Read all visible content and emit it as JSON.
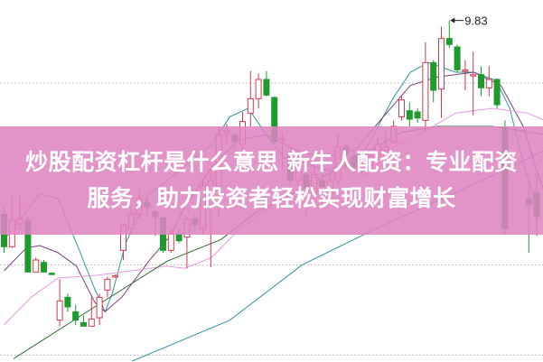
{
  "headline": {
    "line1": "炒股配资杠杆是什么意思 新牛人配资：专业配资",
    "line2": "服务，助力投资者轻松实现财富增长"
  },
  "colors": {
    "up": "#d23a4c",
    "down": "#1e9b2e",
    "grid": "#b0b0b0",
    "banner": "#de84c0",
    "label": "#222222"
  },
  "chart_data": {
    "type": "candlestick",
    "title": "",
    "xlabel": "",
    "ylabel": "",
    "ylim": [
      7.0,
      10.0
    ],
    "grid": true,
    "gridlines": [
      9.31,
      8.55,
      7.8,
      7.05
    ],
    "annotations": [
      {
        "text": "9.83",
        "index": 56,
        "price": 9.83
      }
    ],
    "candles": [
      [
        0,
        8.22,
        7.95,
        8.28,
        7.9
      ],
      [
        1,
        7.95,
        8.17,
        8.39,
        7.94
      ],
      [
        2,
        8.14,
        8.18,
        8.37,
        8.09
      ],
      [
        3,
        8.17,
        7.74,
        8.2,
        7.74
      ],
      [
        4,
        7.74,
        7.84,
        7.86,
        7.74
      ],
      [
        5,
        7.82,
        7.74,
        7.84,
        7.74
      ],
      [
        6,
        7.73,
        7.72,
        7.74,
        7.72
      ],
      [
        7,
        7.34,
        7.5,
        7.68,
        7.29
      ],
      [
        8,
        7.53,
        7.45,
        7.56,
        7.41
      ],
      [
        9,
        7.41,
        7.34,
        7.47,
        7.3
      ],
      [
        10,
        7.32,
        7.29,
        7.38,
        7.29
      ],
      [
        11,
        7.29,
        7.35,
        7.53,
        7.29
      ],
      [
        12,
        7.36,
        7.53,
        7.56,
        7.3
      ],
      [
        13,
        7.59,
        7.68,
        7.7,
        7.53
      ],
      [
        14,
        7.7,
        7.71,
        7.72,
        7.69
      ],
      [
        15,
        7.92,
        8.13,
        8.14,
        7.84
      ],
      [
        16,
        8.1,
        8.22,
        8.3,
        8.05
      ],
      [
        17,
        8.22,
        8.35,
        8.42,
        8.18
      ],
      [
        18,
        8.32,
        8.28,
        8.36,
        8.2
      ],
      [
        19,
        8.24,
        8.2,
        8.25,
        8.04
      ],
      [
        20,
        8.19,
        7.92,
        8.2,
        7.9
      ],
      [
        21,
        7.92,
        8.06,
        8.1,
        7.9
      ],
      [
        22,
        8.06,
        8.0,
        8.1,
        7.98
      ],
      [
        23,
        8.03,
        8.18,
        8.2,
        7.77
      ],
      [
        24,
        8.18,
        8.13,
        8.22,
        8.1
      ],
      [
        25,
        8.1,
        8.46,
        8.5,
        8.05
      ],
      [
        26,
        8.3,
        8.5,
        8.6,
        7.78
      ],
      [
        27,
        8.45,
        8.88,
        8.95,
        8.2
      ],
      [
        28,
        8.89,
        8.91,
        8.97,
        8.8
      ],
      [
        29,
        8.88,
        8.82,
        8.9,
        8.75
      ],
      [
        30,
        8.8,
        8.99,
        9.07,
        8.7
      ],
      [
        31,
        9.06,
        9.18,
        9.41,
        8.95
      ],
      [
        32,
        9.18,
        9.34,
        9.39,
        9.1
      ],
      [
        33,
        9.34,
        9.21,
        9.41,
        9.2
      ],
      [
        34,
        9.19,
        8.82,
        9.2,
        8.8
      ],
      [
        35,
        8.84,
        8.85,
        8.9,
        8.6
      ],
      [
        36,
        8.7,
        8.5,
        8.75,
        8.3
      ],
      [
        37,
        8.5,
        8.62,
        8.7,
        8.4
      ],
      [
        38,
        8.55,
        8.45,
        8.6,
        8.2
      ],
      [
        39,
        8.4,
        8.55,
        8.65,
        8.35
      ],
      [
        40,
        8.5,
        8.45,
        8.6,
        8.3
      ],
      [
        41,
        8.4,
        8.5,
        8.55,
        8.3
      ],
      [
        42,
        8.5,
        8.78,
        8.89,
        8.45
      ],
      [
        43,
        8.78,
        8.72,
        8.8,
        8.6
      ],
      [
        44,
        8.7,
        8.6,
        8.75,
        8.55
      ],
      [
        45,
        8.6,
        8.65,
        8.7,
        8.55
      ],
      [
        46,
        8.62,
        8.7,
        8.75,
        8.6
      ],
      [
        47,
        8.68,
        8.8,
        8.85,
        8.6
      ],
      [
        48,
        8.75,
        8.78,
        8.9,
        8.7
      ],
      [
        49,
        8.82,
        8.95,
        9.0,
        8.8
      ],
      [
        50,
        9.03,
        9.17,
        9.2,
        9.0
      ],
      [
        51,
        9.08,
        9.01,
        9.15,
        8.95
      ],
      [
        52,
        9.07,
        9.02,
        9.1,
        8.98
      ],
      [
        53,
        9.0,
        9.48,
        9.65,
        8.9
      ],
      [
        54,
        9.48,
        9.25,
        9.5,
        9.15
      ],
      [
        55,
        9.26,
        9.68,
        9.78,
        9.02
      ],
      [
        56,
        9.68,
        9.63,
        9.83,
        9.6
      ],
      [
        57,
        9.61,
        9.42,
        9.63,
        9.4
      ],
      [
        58,
        9.41,
        9.42,
        9.5,
        9.25
      ],
      [
        59,
        9.37,
        9.38,
        9.57,
        9.04
      ],
      [
        60,
        9.38,
        9.27,
        9.45,
        9.2
      ],
      [
        61,
        9.27,
        9.34,
        9.45,
        9.2
      ],
      [
        62,
        9.34,
        9.13,
        9.35,
        9.1
      ],
      [
        63,
        8.94,
        8.1,
        9.0,
        8.05
      ],
      [
        66,
        8.35,
        8.3,
        8.5,
        7.9
      ],
      [
        67,
        8.4,
        8.2,
        8.55,
        8.04
      ]
    ],
    "ma_lines": [
      {
        "color": "#2a9a9a",
        "points": [
          [
            0,
            8.01
          ],
          [
            2.3,
            8.2
          ],
          [
            4.5,
            8.39
          ],
          [
            6.8,
            8.35
          ],
          [
            9.1,
            7.98
          ],
          [
            11.4,
            7.6
          ],
          [
            12.7,
            7.41
          ],
          [
            13.6,
            7.56
          ],
          [
            15.3,
            7.98
          ],
          [
            18.2,
            8.39
          ],
          [
            20.5,
            8.5
          ],
          [
            26.1,
            8.8
          ],
          [
            28.4,
            9.03
          ],
          [
            30.7,
            9.1
          ],
          [
            33,
            8.88
          ],
          [
            35.2,
            8.69
          ],
          [
            37.5,
            8.65
          ],
          [
            40.9,
            8.58
          ],
          [
            45.5,
            8.76
          ],
          [
            48.9,
            9.18
          ],
          [
            51.1,
            9.4
          ],
          [
            53.4,
            9.48
          ],
          [
            56.8,
            9.4
          ],
          [
            59.1,
            9.4
          ],
          [
            61.9,
            9.33
          ],
          [
            63.6,
            9.1
          ],
          [
            65.3,
            8.65
          ],
          [
            67,
            8.28
          ]
        ]
      },
      {
        "color": "#7a3f7a",
        "points": [
          [
            0,
            7.75
          ],
          [
            2.8,
            7.94
          ],
          [
            4.5,
            7.96
          ],
          [
            6.8,
            7.9
          ],
          [
            9.1,
            7.79
          ],
          [
            11.4,
            7.49
          ],
          [
            12.7,
            7.41
          ],
          [
            14.8,
            7.53
          ],
          [
            18.2,
            7.83
          ],
          [
            21,
            8.05
          ],
          [
            22.7,
            8.28
          ],
          [
            26.1,
            8.61
          ],
          [
            29.5,
            8.84
          ],
          [
            33,
            8.88
          ],
          [
            36.4,
            8.76
          ],
          [
            39.8,
            8.69
          ],
          [
            44.3,
            8.76
          ],
          [
            47.7,
            9.03
          ],
          [
            51.1,
            9.29
          ],
          [
            54.5,
            9.36
          ],
          [
            59.1,
            9.4
          ],
          [
            62.5,
            9.29
          ],
          [
            65.3,
            8.95
          ],
          [
            67,
            8.58
          ],
          [
            68.3,
            8.35
          ]
        ]
      },
      {
        "color": "#e49ae0",
        "points": [
          [
            0,
            7.3
          ],
          [
            3.4,
            7.53
          ],
          [
            6.8,
            7.69
          ],
          [
            11.4,
            7.71
          ],
          [
            20.5,
            7.79
          ],
          [
            22.7,
            7.77
          ],
          [
            26.1,
            7.86
          ],
          [
            29.5,
            8.09
          ],
          [
            34.1,
            8.31
          ],
          [
            38.6,
            8.5
          ],
          [
            45.5,
            8.69
          ],
          [
            51.1,
            8.84
          ],
          [
            56.8,
            9.06
          ],
          [
            61.4,
            9.1
          ],
          [
            65.9,
            9.06
          ],
          [
            68.3,
            8.99
          ]
        ]
      },
      {
        "color": "#2f6b2f",
        "points": [
          [
            1.2,
            7.02
          ],
          [
            11.4,
            7.45
          ],
          [
            20.5,
            7.83
          ],
          [
            27.3,
            8.01
          ],
          [
            31.8,
            8.24
          ],
          [
            37.5,
            8.43
          ],
          [
            45.5,
            8.73
          ],
          [
            50,
            8.9
          ],
          [
            54.5,
            8.95
          ],
          [
            61.4,
            8.95
          ],
          [
            68.3,
            8.88
          ]
        ]
      },
      {
        "color": "#3a8fa6",
        "points": [
          [
            16.1,
            7.0
          ],
          [
            28.4,
            7.34
          ],
          [
            37.5,
            7.8
          ],
          [
            47.7,
            8.13
          ],
          [
            60.1,
            8.5
          ],
          [
            68.3,
            8.76
          ]
        ]
      }
    ]
  }
}
